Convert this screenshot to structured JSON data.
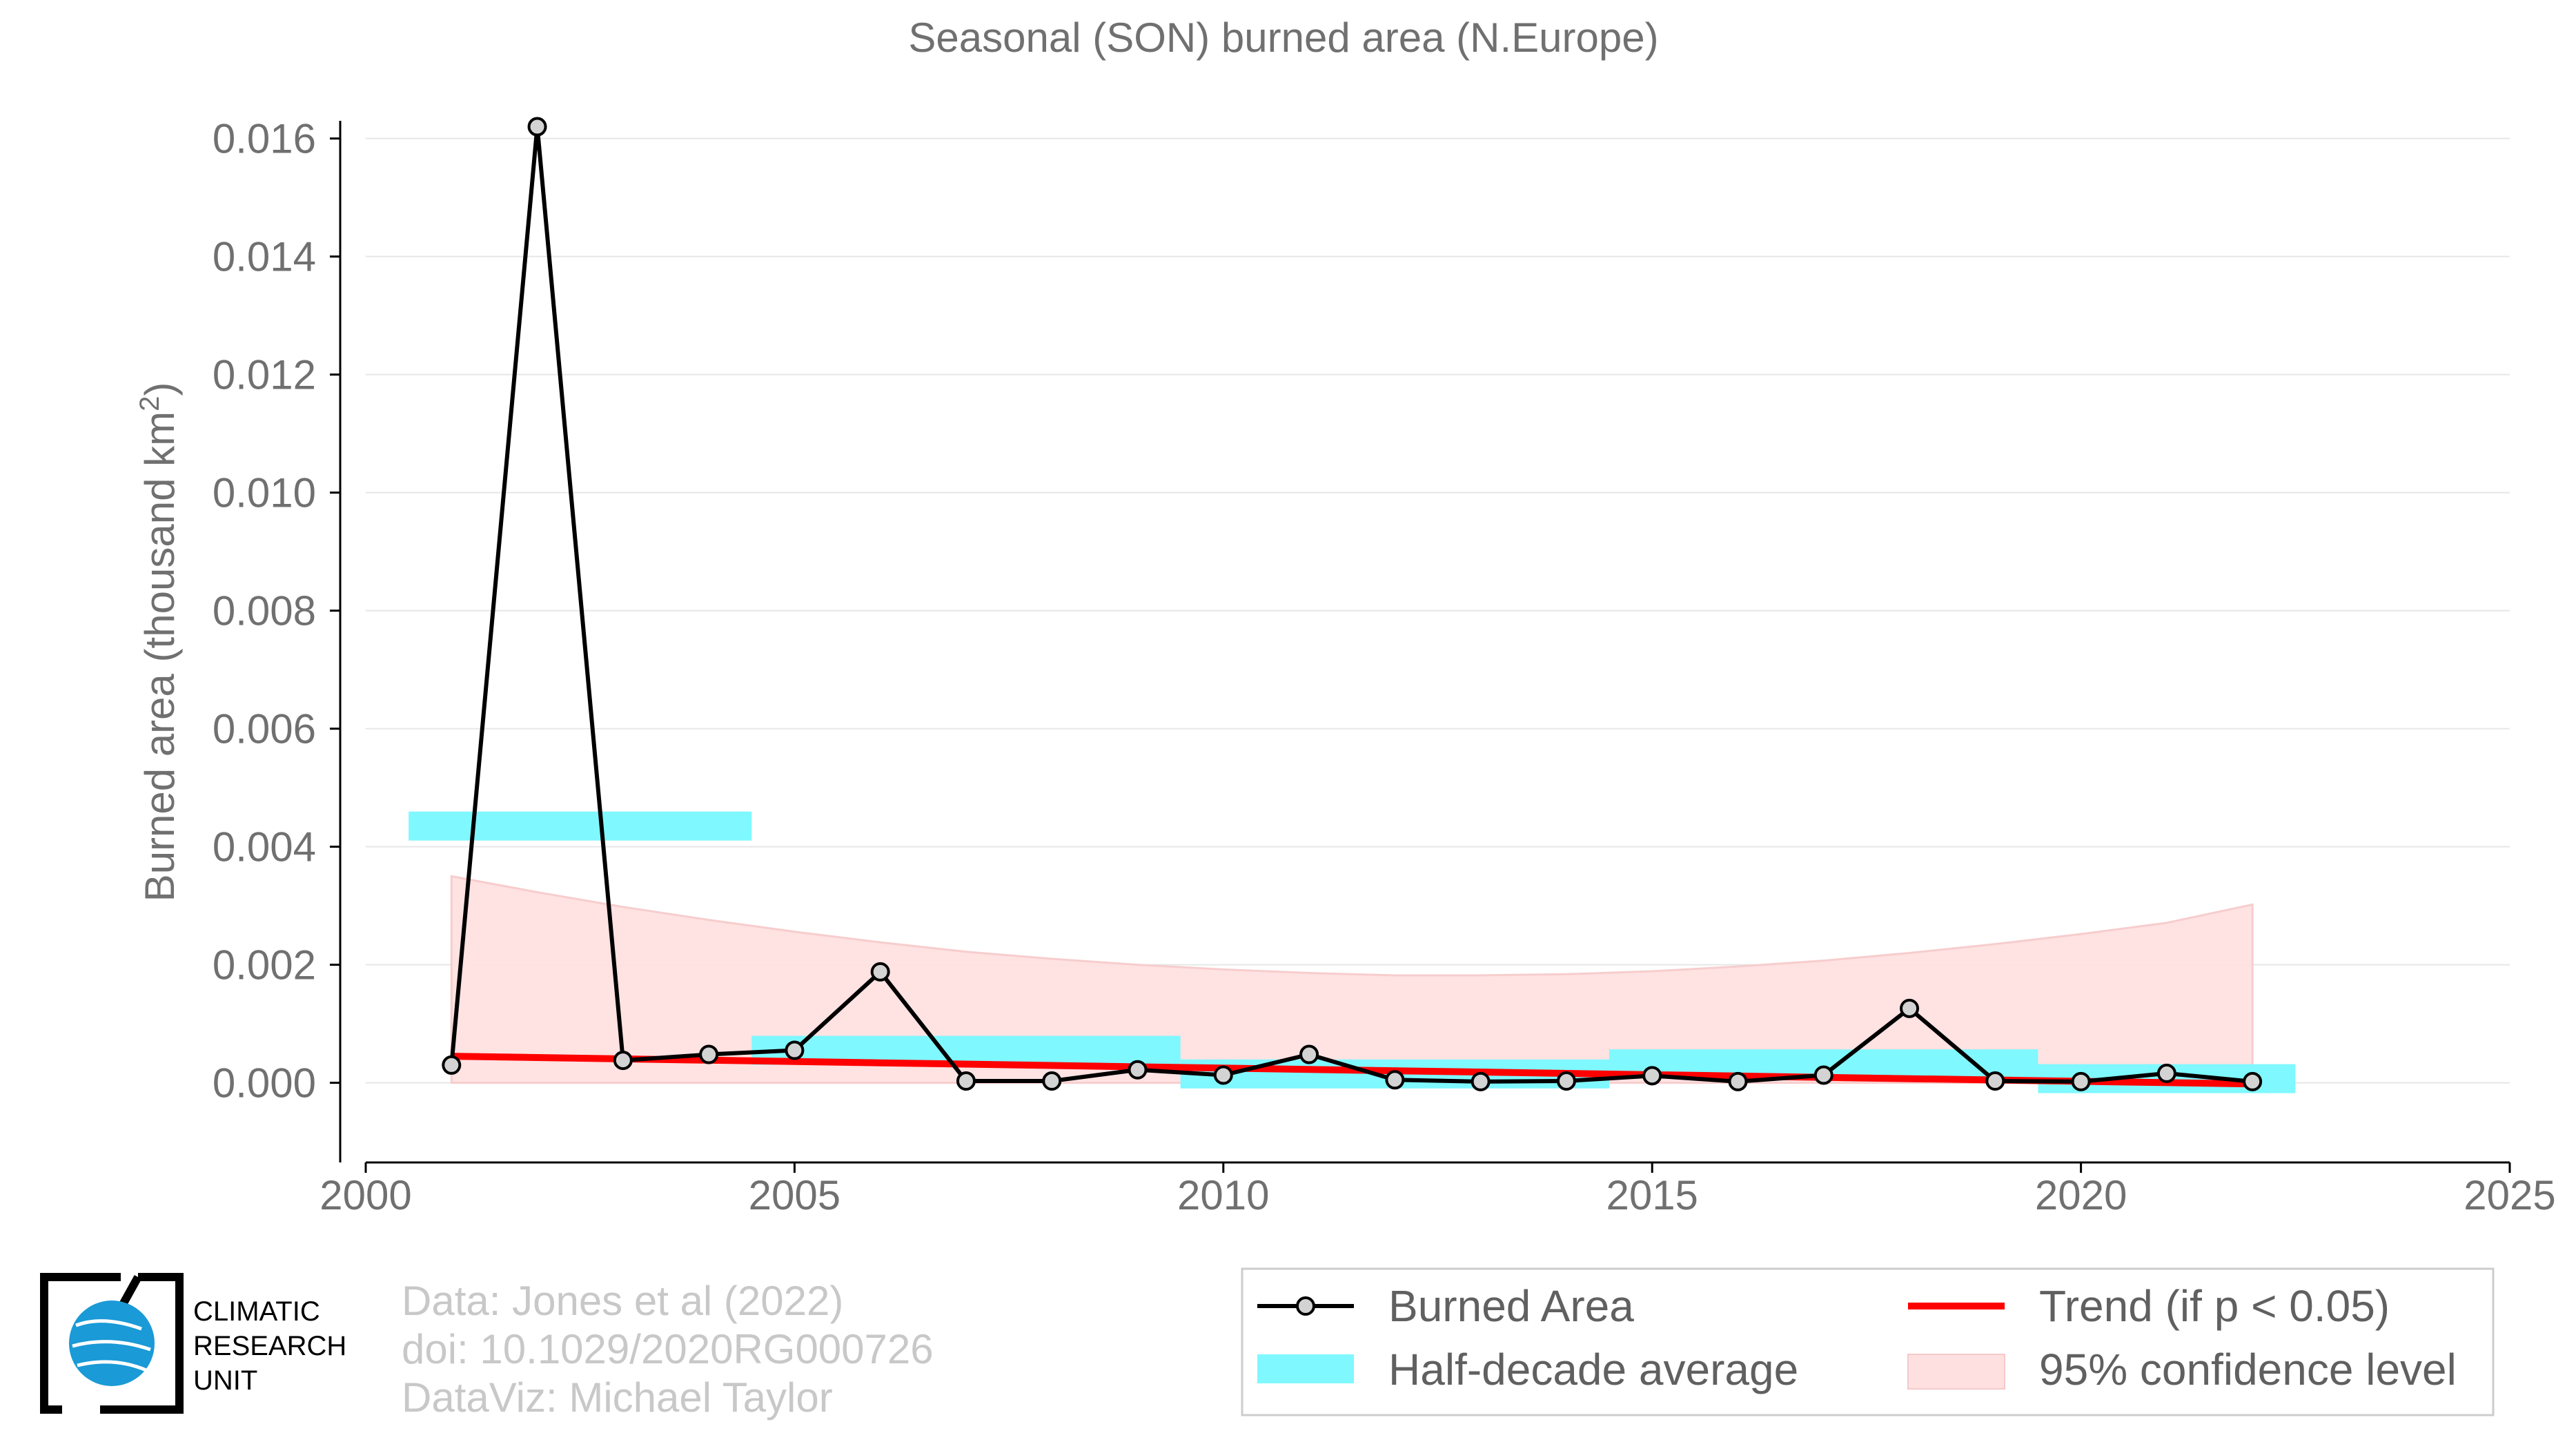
{
  "chart_data": {
    "type": "line",
    "title": "Seasonal (SON) burned area (N.Europe)",
    "ylabel": "Burned area (thousand km",
    "ylabel_sup": "2",
    "ylabel_close": ")",
    "xlim": [
      2000,
      2025
    ],
    "ylim": [
      -0.00135,
      0.0163
    ],
    "x_ticks": [
      2000,
      2005,
      2010,
      2015,
      2020,
      2025
    ],
    "x_tick_labels": [
      "2000",
      "2005",
      "2010",
      "2015",
      "2020",
      "2025"
    ],
    "y_ticks": [
      0,
      0.002,
      0.004,
      0.006,
      0.008,
      0.01,
      0.012,
      0.014,
      0.016
    ],
    "y_tick_labels": [
      "0.000",
      "0.002",
      "0.004",
      "0.006",
      "0.008",
      "0.010",
      "0.012",
      "0.014",
      "0.016"
    ],
    "grid": true,
    "legend_position": "bottom-right",
    "series": [
      {
        "name": "Burned Area",
        "color": "#000000",
        "marker_fill": "#d3d3d3",
        "x": [
          2001,
          2002,
          2003,
          2004,
          2005,
          2006,
          2007,
          2008,
          2009,
          2010,
          2011,
          2012,
          2013,
          2014,
          2015,
          2016,
          2017,
          2018,
          2019,
          2020,
          2021,
          2022
        ],
        "values": [
          0.0003,
          0.0162,
          0.00038,
          0.00048,
          0.00055,
          0.00188,
          3e-05,
          3e-05,
          0.00022,
          0.00013,
          0.00048,
          5e-05,
          2e-05,
          3e-05,
          0.00012,
          2e-05,
          0.00013,
          0.00126,
          3e-05,
          2e-05,
          0.00016,
          2e-05
        ]
      },
      {
        "name": "Half-decade average",
        "color": "#7ff8ff",
        "segments": [
          {
            "x_start": 2000.5,
            "x_end": 2004.5,
            "value": 0.00435
          },
          {
            "x_start": 2004.5,
            "x_end": 2009.5,
            "value": 0.00055
          },
          {
            "x_start": 2009.5,
            "x_end": 2014.5,
            "value": 0.00015
          },
          {
            "x_start": 2014.5,
            "x_end": 2019.5,
            "value": 0.00032
          },
          {
            "x_start": 2019.5,
            "x_end": 2022.5,
            "value": 7e-05
          }
        ]
      },
      {
        "name": "Trend (if p < 0.05)",
        "color": "#ff0000",
        "x": [
          2001,
          2022
        ],
        "values": [
          0.00045,
          -2e-05
        ]
      },
      {
        "name": "95% confidence level",
        "color": "#ffe0e0",
        "x": [
          2001,
          2002,
          2003,
          2004,
          2005,
          2006,
          2007,
          2008,
          2009,
          2010,
          2011,
          2012,
          2013,
          2014,
          2015,
          2016,
          2017,
          2018,
          2019,
          2020,
          2021,
          2022
        ],
        "upper": [
          0.0035,
          0.00323,
          0.00298,
          0.00276,
          0.00256,
          0.00238,
          0.00222,
          0.0021,
          0.002,
          0.00192,
          0.00186,
          0.00182,
          0.00182,
          0.00184,
          0.00189,
          0.00197,
          0.00207,
          0.0022,
          0.00235,
          0.00252,
          0.00271,
          0.00302
        ],
        "lower": [
          0,
          0,
          0,
          0,
          0,
          0,
          0,
          0,
          0,
          0,
          0,
          0,
          0,
          0,
          0,
          0,
          0,
          0,
          0,
          0,
          0,
          0
        ]
      }
    ]
  },
  "credits": {
    "line1": "Data: Jones et al (2022)",
    "line2": "doi: 10.1029/2020RG000726",
    "line3": "DataViz: Michael Taylor"
  },
  "logo": {
    "line1": "CLIMATIC",
    "line2": "RESEARCH",
    "line3": "UNIT"
  }
}
